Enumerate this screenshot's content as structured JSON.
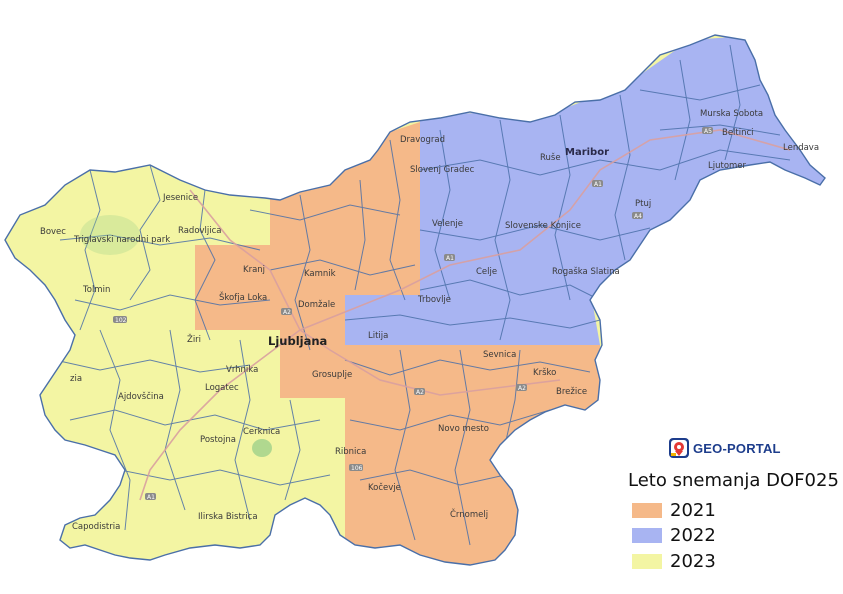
{
  "map": {
    "regions": [
      {
        "year": "2021",
        "color": "#f5b989"
      },
      {
        "year": "2022",
        "color": "#a8b4f2"
      },
      {
        "year": "2023",
        "color": "#f3f5a3"
      }
    ],
    "labels": {
      "ljubljana": "Ljubljana",
      "maribor": "Maribor",
      "murska_sobota": "Murska Sobota",
      "beltinci": "Beltinci",
      "lendava": "Lendava",
      "ljutomer": "Ljutomer",
      "ptuj": "Ptuj",
      "ruse": "Ruše",
      "dravograd": "Dravograd",
      "slovenj_gradec": "Slovenj Gradec",
      "velenje": "Velenje",
      "slovenske_konjice": "Slovenske Konjice",
      "celje": "Celje",
      "rogaska_slatina": "Rogaška Slatina",
      "trbovlje": "Trbovlje",
      "litija": "Litija",
      "sevnica": "Sevnica",
      "krsko": "Krško",
      "brezice": "Brežice",
      "novo_mesto": "Novo mesto",
      "crnomelj": "Črnomelj",
      "kocevje": "Kočevje",
      "ribnica": "Ribnica",
      "grosuplje": "Grosuplje",
      "vrhnika": "Vrhnika",
      "logatec": "Logatec",
      "cerknica": "Cerknica",
      "postojna": "Postojna",
      "ilirska_bistrica": "Ilirska Bistrica",
      "koper": "Capodistria",
      "ajdovscina": "Ajdovščina",
      "zia": "zia",
      "tolmin": "Tolmin",
      "bovec": "Bovec",
      "triglav": "Triglavski narodni park",
      "jesenice": "Jesenice",
      "radovljica": "Radovljica",
      "kranj": "Kranj",
      "kamnik": "Kamnik",
      "skofja_loka": "Škofja Loka",
      "domzale": "Domžale",
      "ziri": "Žiri"
    },
    "road_shields": [
      "A1",
      "A2",
      "A4",
      "A5",
      "102",
      "106"
    ]
  },
  "logo": {
    "text": "GEO-PORTAL"
  },
  "legend": {
    "title": "Leto snemanja DOF025",
    "items": [
      {
        "label": "2021",
        "color": "#f5b989"
      },
      {
        "label": "2022",
        "color": "#a8b4f2"
      },
      {
        "label": "2023",
        "color": "#f3f5a3"
      }
    ]
  }
}
